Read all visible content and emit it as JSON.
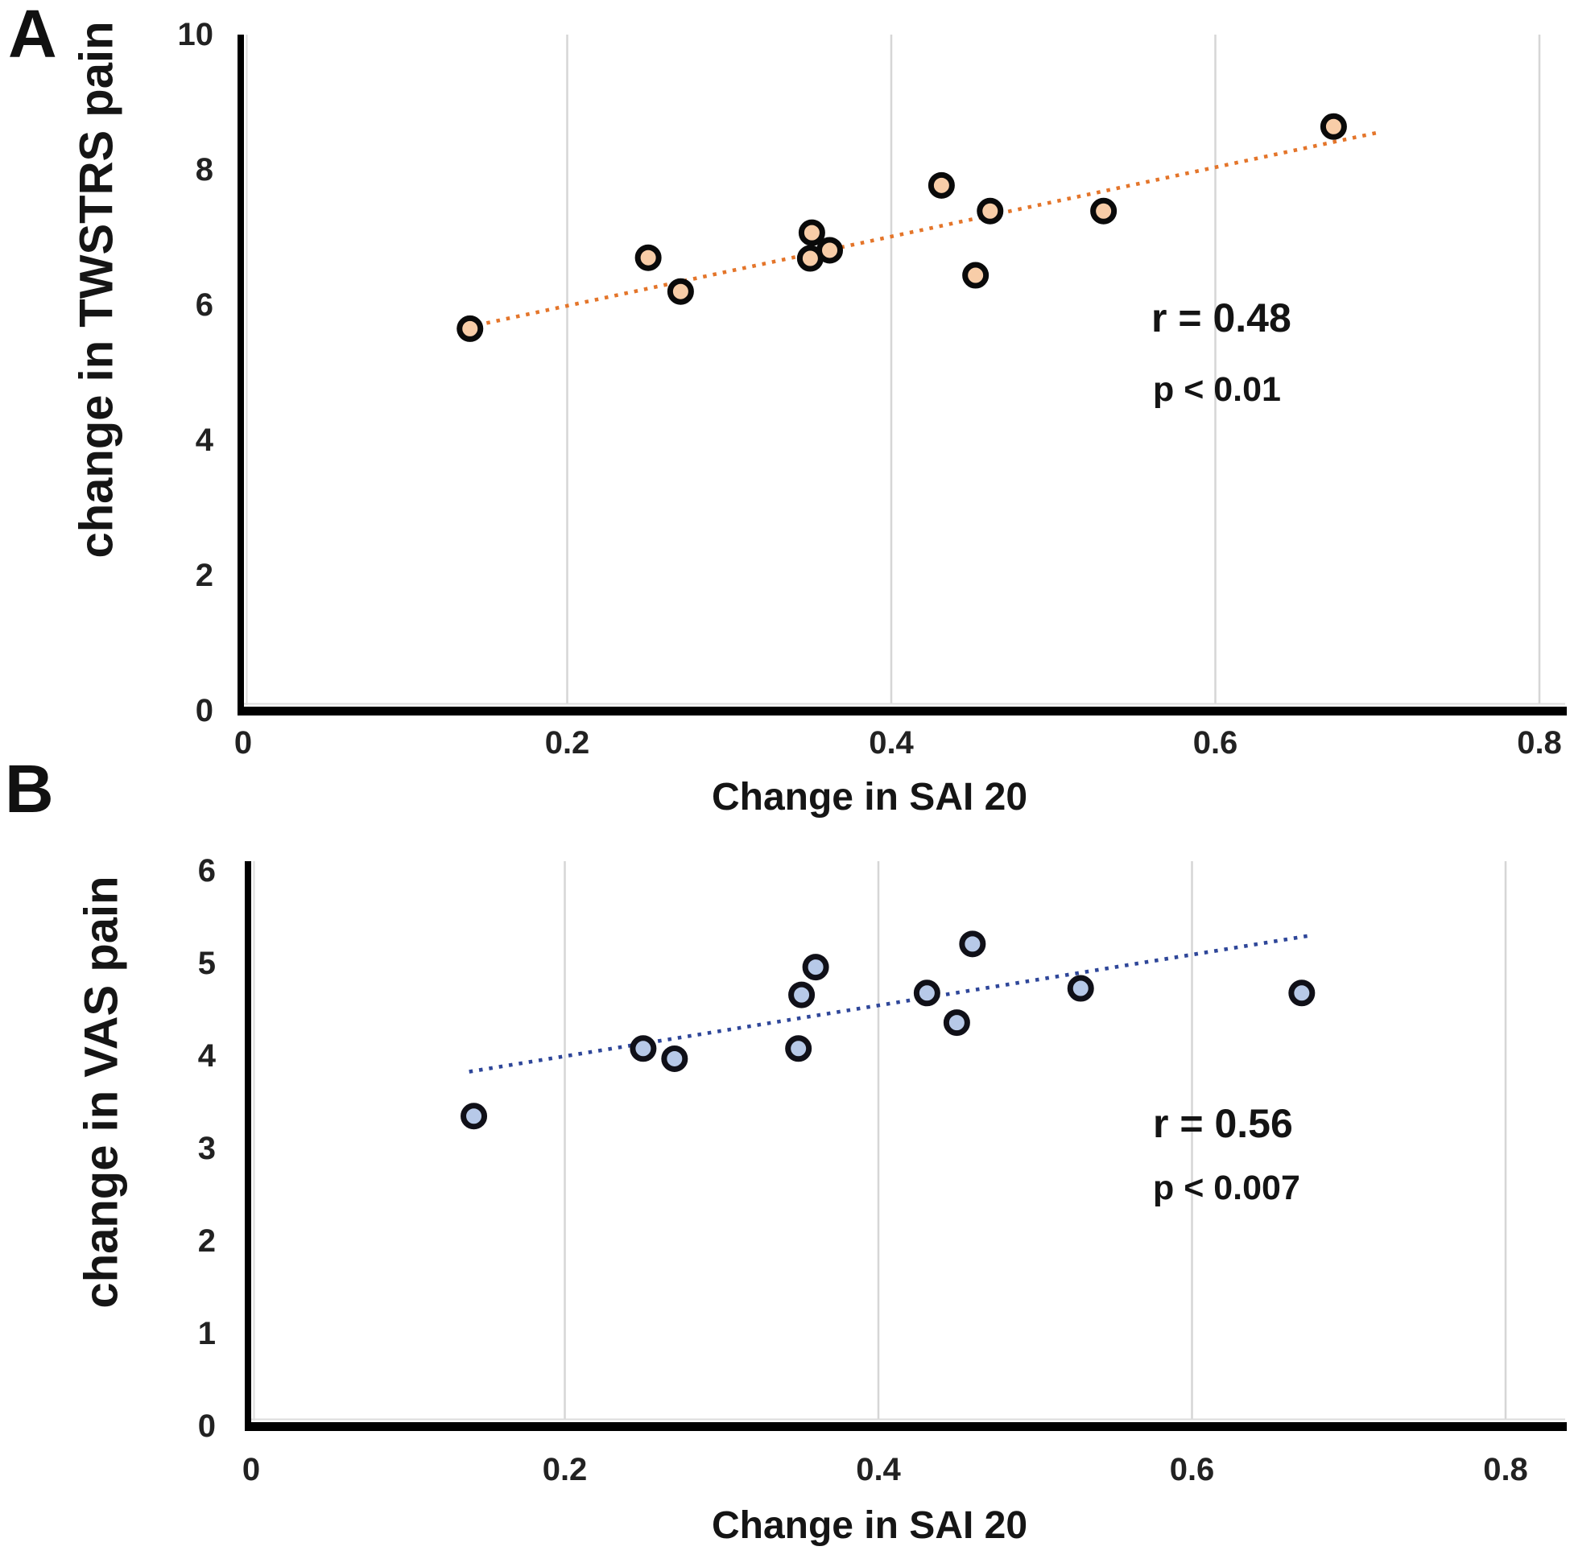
{
  "figure": {
    "background": "#ffffff",
    "panels": [
      {
        "letter": "A",
        "y_title": "change in TWSTRS pain",
        "x_title": "Change in SAI 20",
        "r_label": "r = 0.48",
        "p_label": "p < 0.01",
        "y_tick_labels": [
          "0",
          "2",
          "4",
          "6",
          "8",
          "10"
        ],
        "x_tick_labels": [
          "0",
          "0.2",
          "0.4",
          "0.6",
          "0.8"
        ],
        "marker_fill": "#F8CDA8",
        "marker_stroke": "#0A0A0A",
        "trend_color": "#E4752A",
        "grid_color": "#D6D6D6",
        "axis_color": "#000000"
      },
      {
        "letter": "B",
        "y_title": "change in VAS pain",
        "x_title": "Change in SAI 20",
        "r_label": "r = 0.56",
        "p_label": "p < 0.007",
        "y_tick_labels": [
          "0",
          "1",
          "2",
          "3",
          "4",
          "5",
          "6"
        ],
        "x_tick_labels": [
          "0",
          "0.2",
          "0.4",
          "0.6",
          "0.8"
        ],
        "marker_fill": "#B7C9E8",
        "marker_stroke": "#101018",
        "trend_color": "#2E4699",
        "grid_color": "#D6D6D6",
        "axis_color": "#000000"
      }
    ]
  },
  "chart_data": [
    {
      "type": "scatter",
      "panel": "A",
      "xlabel": "Change in SAI 20",
      "ylabel": "change in TWSTRS pain",
      "xlim": [
        0,
        0.8
      ],
      "ylim": [
        0,
        10
      ],
      "x_ticks": [
        0,
        0.2,
        0.4,
        0.6,
        0.8
      ],
      "y_ticks": [
        0,
        2,
        4,
        6,
        8,
        10
      ],
      "grid": "vertical-only",
      "annotations": [
        "r = 0.48",
        "p < 0.01"
      ],
      "points": [
        [
          0.14,
          5.65
        ],
        [
          0.25,
          6.7
        ],
        [
          0.27,
          6.2
        ],
        [
          0.351,
          7.07
        ],
        [
          0.35,
          6.69
        ],
        [
          0.362,
          6.81
        ],
        [
          0.431,
          7.77
        ],
        [
          0.452,
          6.44
        ],
        [
          0.461,
          7.39
        ],
        [
          0.531,
          7.39
        ],
        [
          0.673,
          8.64
        ]
      ],
      "trendline": {
        "style": "dotted",
        "x1": 0.132,
        "y1": 5.64,
        "x2": 0.7,
        "y2": 8.55
      }
    },
    {
      "type": "scatter",
      "panel": "B",
      "xlabel": "Change in SAI 20",
      "ylabel": "change in VAS pain",
      "xlim": [
        0,
        0.8
      ],
      "ylim": [
        0,
        6
      ],
      "x_ticks": [
        0,
        0.2,
        0.4,
        0.6,
        0.8
      ],
      "y_ticks": [
        0,
        1,
        2,
        3,
        4,
        5,
        6
      ],
      "grid": "vertical-only",
      "annotations": [
        "r = 0.56",
        "p < 0.007"
      ],
      "points": [
        [
          0.142,
          3.35
        ],
        [
          0.25,
          4.08
        ],
        [
          0.27,
          3.97
        ],
        [
          0.36,
          4.96
        ],
        [
          0.351,
          4.66
        ],
        [
          0.349,
          4.08
        ],
        [
          0.431,
          4.68
        ],
        [
          0.45,
          4.36
        ],
        [
          0.46,
          5.21
        ],
        [
          0.529,
          4.73
        ],
        [
          0.67,
          4.68
        ]
      ],
      "trendline": {
        "style": "dotted",
        "x1": 0.139,
        "y1": 3.83,
        "x2": 0.675,
        "y2": 5.3
      }
    }
  ]
}
